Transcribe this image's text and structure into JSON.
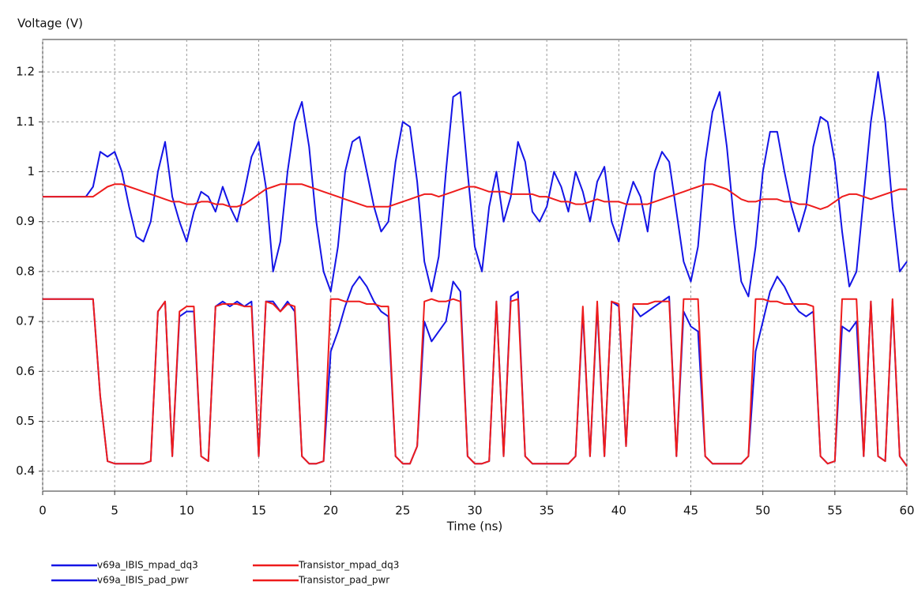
{
  "chart_data": {
    "type": "line",
    "y_label": "Voltage (V)",
    "x_label": "Time (ns)",
    "xlim": [
      0,
      60
    ],
    "xticks": [
      0,
      5,
      10,
      15,
      20,
      25,
      30,
      35,
      40,
      45,
      50,
      55,
      60
    ],
    "ylim": [
      0.36,
      1.265
    ],
    "yticks": [
      0.4,
      0.5,
      0.6,
      0.7,
      0.8,
      0.9,
      1,
      1.1,
      1.2
    ],
    "grid": true,
    "x": [
      0,
      0.5,
      1,
      1.5,
      2,
      2.5,
      3,
      3.5,
      4,
      4.5,
      5,
      5.5,
      6,
      6.5,
      7,
      7.5,
      8,
      8.5,
      9,
      9.5,
      10,
      10.5,
      11,
      11.5,
      12,
      12.5,
      13,
      13.5,
      14,
      14.5,
      15,
      15.5,
      16,
      16.5,
      17,
      17.5,
      18,
      18.5,
      19,
      19.5,
      20,
      20.5,
      21,
      21.5,
      22,
      22.5,
      23,
      23.5,
      24,
      24.5,
      25,
      25.5,
      26,
      26.5,
      27,
      27.5,
      28,
      28.5,
      29,
      29.5,
      30,
      30.5,
      31,
      31.5,
      32,
      32.5,
      33,
      33.5,
      34,
      34.5,
      35,
      35.5,
      36,
      36.5,
      37,
      37.5,
      38,
      38.5,
      39,
      39.5,
      40,
      40.5,
      41,
      41.5,
      42,
      42.5,
      43,
      43.5,
      44,
      44.5,
      45,
      45.5,
      46,
      46.5,
      47,
      47.5,
      48,
      48.5,
      49,
      49.5,
      50,
      50.5,
      51,
      51.5,
      52,
      52.5,
      53,
      53.5,
      54,
      54.5,
      55,
      55.5,
      56,
      56.5,
      57,
      57.5,
      58,
      58.5,
      59,
      59.5,
      60
    ],
    "series": [
      {
        "name": "v69a_IBIS_mpad_dq3",
        "color": "#1414e6",
        "values": [
          0.95,
          0.95,
          0.95,
          0.95,
          0.95,
          0.95,
          0.95,
          0.97,
          1.04,
          1.03,
          1.04,
          1.0,
          0.93,
          0.87,
          0.86,
          0.9,
          1.0,
          1.06,
          0.95,
          0.9,
          0.86,
          0.92,
          0.96,
          0.95,
          0.92,
          0.97,
          0.93,
          0.9,
          0.96,
          1.03,
          1.06,
          0.97,
          0.8,
          0.86,
          1.0,
          1.1,
          1.14,
          1.05,
          0.9,
          0.8,
          0.76,
          0.85,
          1.0,
          1.06,
          1.07,
          1.0,
          0.93,
          0.88,
          0.9,
          1.02,
          1.1,
          1.09,
          0.98,
          0.82,
          0.76,
          0.83,
          1.0,
          1.15,
          1.16,
          1.0,
          0.85,
          0.8,
          0.93,
          1.0,
          0.9,
          0.95,
          1.06,
          1.02,
          0.92,
          0.9,
          0.93,
          1.0,
          0.97,
          0.92,
          1.0,
          0.96,
          0.9,
          0.98,
          1.01,
          0.9,
          0.86,
          0.93,
          0.98,
          0.95,
          0.88,
          1.0,
          1.04,
          1.02,
          0.92,
          0.82,
          0.78,
          0.85,
          1.02,
          1.12,
          1.16,
          1.05,
          0.9,
          0.78,
          0.75,
          0.85,
          1.0,
          1.08,
          1.08,
          1.0,
          0.93,
          0.88,
          0.93,
          1.05,
          1.11,
          1.1,
          1.02,
          0.88,
          0.77,
          0.8,
          0.95,
          1.1,
          1.2,
          1.1,
          0.93,
          0.8,
          0.82
        ]
      },
      {
        "name": "v69a_IBIS_pad_pwr",
        "color": "#1414e6",
        "values": [
          0.745,
          0.745,
          0.745,
          0.745,
          0.745,
          0.745,
          0.745,
          0.745,
          0.55,
          0.42,
          0.415,
          0.415,
          0.415,
          0.415,
          0.415,
          0.42,
          0.72,
          0.74,
          0.43,
          0.71,
          0.72,
          0.72,
          0.43,
          0.42,
          0.73,
          0.74,
          0.73,
          0.74,
          0.73,
          0.74,
          0.43,
          0.74,
          0.74,
          0.72,
          0.74,
          0.72,
          0.43,
          0.415,
          0.415,
          0.42,
          0.64,
          0.68,
          0.73,
          0.77,
          0.79,
          0.77,
          0.74,
          0.72,
          0.71,
          0.43,
          0.415,
          0.415,
          0.45,
          0.7,
          0.66,
          0.68,
          0.7,
          0.78,
          0.76,
          0.43,
          0.415,
          0.415,
          0.42,
          0.74,
          0.43,
          0.75,
          0.76,
          0.43,
          0.415,
          0.415,
          0.415,
          0.415,
          0.415,
          0.415,
          0.43,
          0.72,
          0.43,
          0.73,
          0.43,
          0.74,
          0.73,
          0.45,
          0.73,
          0.71,
          0.72,
          0.73,
          0.74,
          0.75,
          0.43,
          0.72,
          0.69,
          0.68,
          0.43,
          0.415,
          0.415,
          0.415,
          0.415,
          0.415,
          0.43,
          0.64,
          0.7,
          0.76,
          0.79,
          0.77,
          0.74,
          0.72,
          0.71,
          0.72,
          0.43,
          0.415,
          0.42,
          0.69,
          0.68,
          0.7,
          0.43,
          0.74,
          0.43,
          0.42,
          0.74,
          0.43,
          0.41
        ]
      },
      {
        "name": "Transistor_mpad_dq3",
        "color": "#ee1c1c",
        "values": [
          0.95,
          0.95,
          0.95,
          0.95,
          0.95,
          0.95,
          0.95,
          0.95,
          0.96,
          0.97,
          0.975,
          0.975,
          0.97,
          0.965,
          0.96,
          0.955,
          0.95,
          0.945,
          0.94,
          0.94,
          0.935,
          0.935,
          0.94,
          0.94,
          0.935,
          0.935,
          0.93,
          0.93,
          0.935,
          0.945,
          0.955,
          0.965,
          0.97,
          0.975,
          0.975,
          0.975,
          0.975,
          0.97,
          0.965,
          0.96,
          0.955,
          0.95,
          0.945,
          0.94,
          0.935,
          0.93,
          0.93,
          0.93,
          0.93,
          0.935,
          0.94,
          0.945,
          0.95,
          0.955,
          0.955,
          0.95,
          0.955,
          0.96,
          0.965,
          0.97,
          0.97,
          0.965,
          0.96,
          0.96,
          0.96,
          0.955,
          0.955,
          0.955,
          0.955,
          0.95,
          0.95,
          0.945,
          0.94,
          0.94,
          0.935,
          0.935,
          0.94,
          0.945,
          0.94,
          0.94,
          0.94,
          0.935,
          0.935,
          0.935,
          0.935,
          0.94,
          0.945,
          0.95,
          0.955,
          0.96,
          0.965,
          0.97,
          0.975,
          0.975,
          0.97,
          0.965,
          0.955,
          0.945,
          0.94,
          0.94,
          0.945,
          0.945,
          0.945,
          0.94,
          0.94,
          0.935,
          0.935,
          0.93,
          0.925,
          0.93,
          0.94,
          0.95,
          0.955,
          0.955,
          0.95,
          0.945,
          0.95,
          0.955,
          0.96,
          0.965,
          0.965
        ]
      },
      {
        "name": "Transistor_pad_pwr",
        "color": "#ee1c1c",
        "values": [
          0.745,
          0.745,
          0.745,
          0.745,
          0.745,
          0.745,
          0.745,
          0.745,
          0.55,
          0.42,
          0.415,
          0.415,
          0.415,
          0.415,
          0.415,
          0.42,
          0.72,
          0.74,
          0.43,
          0.72,
          0.73,
          0.73,
          0.43,
          0.42,
          0.73,
          0.735,
          0.735,
          0.735,
          0.73,
          0.73,
          0.43,
          0.74,
          0.735,
          0.72,
          0.735,
          0.73,
          0.43,
          0.415,
          0.415,
          0.42,
          0.745,
          0.745,
          0.74,
          0.74,
          0.74,
          0.735,
          0.735,
          0.73,
          0.73,
          0.43,
          0.415,
          0.415,
          0.45,
          0.74,
          0.745,
          0.74,
          0.74,
          0.745,
          0.74,
          0.43,
          0.415,
          0.415,
          0.42,
          0.74,
          0.43,
          0.74,
          0.745,
          0.43,
          0.415,
          0.415,
          0.415,
          0.415,
          0.415,
          0.415,
          0.43,
          0.73,
          0.43,
          0.74,
          0.43,
          0.74,
          0.735,
          0.45,
          0.735,
          0.735,
          0.735,
          0.74,
          0.74,
          0.74,
          0.43,
          0.745,
          0.745,
          0.745,
          0.43,
          0.415,
          0.415,
          0.415,
          0.415,
          0.415,
          0.43,
          0.745,
          0.745,
          0.74,
          0.74,
          0.735,
          0.735,
          0.735,
          0.735,
          0.73,
          0.43,
          0.415,
          0.42,
          0.745,
          0.745,
          0.745,
          0.43,
          0.74,
          0.43,
          0.42,
          0.745,
          0.43,
          0.41
        ]
      }
    ]
  }
}
